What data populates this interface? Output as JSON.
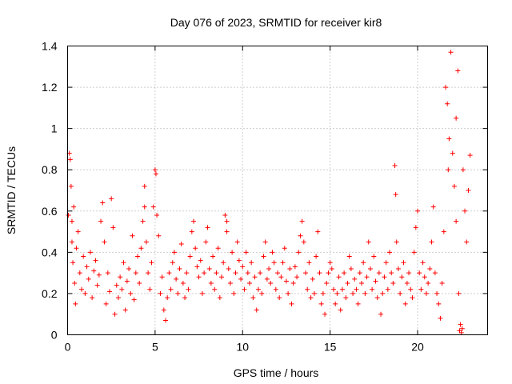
{
  "chart_data": {
    "type": "scatter",
    "title": "Day 076 of 2023, SRMTID for receiver kir8",
    "xlabel": "GPS time / hours",
    "ylabel": "SRMTID / TECUs",
    "xlim": [
      0,
      24
    ],
    "ylim": [
      0,
      1.4
    ],
    "x_ticks": [
      0,
      5,
      10,
      15,
      20
    ],
    "x_tick_labels": [
      "0",
      "5",
      "10",
      "15",
      "20"
    ],
    "y_ticks": [
      0,
      0.2,
      0.4,
      0.6,
      0.8,
      1,
      1.2,
      1.4
    ],
    "y_tick_labels": [
      "0",
      "0.2",
      "0.4",
      "0.6",
      "0.8",
      "1",
      "1.2",
      "1.4"
    ],
    "grid": true,
    "marker": "+",
    "color": "#ff0000",
    "series": [
      {
        "name": "SRMTID",
        "points": [
          [
            0.05,
            0.58
          ],
          [
            0.1,
            0.88
          ],
          [
            0.15,
            0.85
          ],
          [
            0.2,
            0.72
          ],
          [
            0.25,
            0.45
          ],
          [
            0.3,
            0.35
          ],
          [
            0.35,
            0.62
          ],
          [
            0.4,
            0.25
          ],
          [
            0.45,
            0.15
          ],
          [
            0.5,
            0.42
          ],
          [
            0.6,
            0.5
          ],
          [
            0.7,
            0.3
          ],
          [
            0.8,
            0.22
          ],
          [
            0.9,
            0.38
          ],
          [
            1.0,
            0.2
          ],
          [
            1.1,
            0.33
          ],
          [
            1.2,
            0.27
          ],
          [
            1.3,
            0.4
          ],
          [
            1.4,
            0.18
          ],
          [
            1.5,
            0.31
          ],
          [
            1.6,
            0.36
          ],
          [
            1.7,
            0.24
          ],
          [
            1.8,
            0.29
          ],
          [
            1.9,
            0.55
          ],
          [
            2.0,
            0.64
          ],
          [
            2.1,
            0.45
          ],
          [
            2.2,
            0.15
          ],
          [
            2.3,
            0.3
          ],
          [
            2.4,
            0.21
          ],
          [
            2.5,
            0.66
          ],
          [
            2.6,
            0.52
          ],
          [
            2.7,
            0.1
          ],
          [
            2.8,
            0.24
          ],
          [
            2.9,
            0.18
          ],
          [
            3.0,
            0.28
          ],
          [
            3.1,
            0.22
          ],
          [
            3.2,
            0.35
          ],
          [
            3.3,
            0.12
          ],
          [
            3.4,
            0.26
          ],
          [
            3.5,
            0.32
          ],
          [
            3.6,
            0.2
          ],
          [
            3.7,
            0.48
          ],
          [
            3.8,
            0.17
          ],
          [
            3.9,
            0.3
          ],
          [
            4.0,
            0.38
          ],
          [
            4.1,
            0.25
          ],
          [
            4.2,
            0.42
          ],
          [
            4.3,
            0.55
          ],
          [
            4.4,
            0.72
          ],
          [
            4.5,
            0.45
          ],
          [
            4.6,
            0.3
          ],
          [
            4.7,
            0.22
          ],
          [
            4.8,
            0.35
          ],
          [
            4.9,
            0.62
          ],
          [
            5.0,
            0.8
          ],
          [
            5.05,
            0.78
          ],
          [
            5.1,
            0.58
          ],
          [
            5.2,
            0.48
          ],
          [
            5.3,
            0.2
          ],
          [
            5.4,
            0.28
          ],
          [
            5.5,
            0.12
          ],
          [
            5.6,
            0.07
          ],
          [
            5.7,
            0.18
          ],
          [
            5.8,
            0.3
          ],
          [
            5.9,
            0.22
          ],
          [
            6.0,
            0.35
          ],
          [
            6.1,
            0.4
          ],
          [
            6.2,
            0.27
          ],
          [
            6.3,
            0.2
          ],
          [
            6.4,
            0.32
          ],
          [
            6.5,
            0.44
          ],
          [
            6.6,
            0.25
          ],
          [
            6.7,
            0.18
          ],
          [
            6.8,
            0.3
          ],
          [
            6.9,
            0.22
          ],
          [
            7.0,
            0.38
          ],
          [
            7.1,
            0.5
          ],
          [
            7.2,
            0.55
          ],
          [
            7.3,
            0.42
          ],
          [
            7.4,
            0.33
          ],
          [
            7.5,
            0.28
          ],
          [
            7.6,
            0.36
          ],
          [
            7.7,
            0.2
          ],
          [
            7.8,
            0.3
          ],
          [
            7.9,
            0.45
          ],
          [
            8.0,
            0.52
          ],
          [
            8.1,
            0.32
          ],
          [
            8.2,
            0.25
          ],
          [
            8.3,
            0.38
          ],
          [
            8.4,
            0.22
          ],
          [
            8.5,
            0.3
          ],
          [
            8.6,
            0.42
          ],
          [
            8.7,
            0.18
          ],
          [
            8.8,
            0.28
          ],
          [
            8.9,
            0.35
          ],
          [
            9.0,
            0.58
          ],
          [
            9.1,
            0.55
          ],
          [
            9.2,
            0.32
          ],
          [
            9.3,
            0.25
          ],
          [
            9.4,
            0.4
          ],
          [
            9.5,
            0.2
          ],
          [
            9.6,
            0.3
          ],
          [
            9.7,
            0.45
          ],
          [
            9.8,
            0.36
          ],
          [
            9.9,
            0.27
          ],
          [
            10.0,
            0.33
          ],
          [
            10.1,
            0.22
          ],
          [
            10.2,
            0.4
          ],
          [
            10.3,
            0.3
          ],
          [
            10.4,
            0.25
          ],
          [
            10.5,
            0.35
          ],
          [
            10.6,
            0.18
          ],
          [
            10.7,
            0.28
          ],
          [
            10.8,
            0.12
          ],
          [
            10.9,
            0.22
          ],
          [
            11.0,
            0.3
          ],
          [
            11.1,
            0.2
          ],
          [
            11.2,
            0.38
          ],
          [
            11.3,
            0.45
          ],
          [
            11.4,
            0.27
          ],
          [
            11.5,
            0.32
          ],
          [
            11.6,
            0.25
          ],
          [
            11.7,
            0.4
          ],
          [
            11.8,
            0.35
          ],
          [
            11.9,
            0.22
          ],
          [
            12.0,
            0.3
          ],
          [
            12.1,
            0.18
          ],
          [
            12.2,
            0.28
          ],
          [
            12.3,
            0.35
          ],
          [
            12.4,
            0.42
          ],
          [
            12.5,
            0.26
          ],
          [
            12.6,
            0.2
          ],
          [
            12.7,
            0.32
          ],
          [
            12.8,
            0.15
          ],
          [
            12.9,
            0.25
          ],
          [
            13.0,
            0.33
          ],
          [
            13.1,
            0.28
          ],
          [
            13.2,
            0.4
          ],
          [
            13.3,
            0.48
          ],
          [
            13.4,
            0.55
          ],
          [
            13.5,
            0.45
          ],
          [
            13.6,
            0.3
          ],
          [
            13.7,
            0.22
          ],
          [
            13.8,
            0.35
          ],
          [
            13.9,
            0.18
          ],
          [
            14.0,
            0.27
          ],
          [
            14.1,
            0.2
          ],
          [
            14.2,
            0.38
          ],
          [
            14.3,
            0.5
          ],
          [
            14.4,
            0.3
          ],
          [
            14.5,
            0.15
          ],
          [
            14.6,
            0.2
          ],
          [
            14.7,
            0.1
          ],
          [
            14.8,
            0.25
          ],
          [
            14.9,
            0.3
          ],
          [
            15.0,
            0.35
          ],
          [
            15.1,
            0.32
          ],
          [
            15.2,
            0.22
          ],
          [
            15.3,
            0.15
          ],
          [
            15.4,
            0.2
          ],
          [
            15.5,
            0.28
          ],
          [
            15.6,
            0.12
          ],
          [
            15.7,
            0.22
          ],
          [
            15.8,
            0.3
          ],
          [
            15.9,
            0.18
          ],
          [
            16.0,
            0.25
          ],
          [
            16.1,
            0.38
          ],
          [
            16.2,
            0.32
          ],
          [
            16.3,
            0.2
          ],
          [
            16.4,
            0.27
          ],
          [
            16.5,
            0.22
          ],
          [
            16.6,
            0.15
          ],
          [
            16.7,
            0.3
          ],
          [
            16.8,
            0.25
          ],
          [
            16.9,
            0.35
          ],
          [
            17.0,
            0.2
          ],
          [
            17.1,
            0.28
          ],
          [
            17.2,
            0.45
          ],
          [
            17.3,
            0.32
          ],
          [
            17.4,
            0.22
          ],
          [
            17.5,
            0.38
          ],
          [
            17.6,
            0.26
          ],
          [
            17.7,
            0.18
          ],
          [
            17.8,
            0.3
          ],
          [
            17.9,
            0.1
          ],
          [
            18.0,
            0.2
          ],
          [
            18.1,
            0.28
          ],
          [
            18.2,
            0.35
          ],
          [
            18.3,
            0.22
          ],
          [
            18.4,
            0.4
          ],
          [
            18.5,
            0.3
          ],
          [
            18.6,
            0.25
          ],
          [
            18.7,
            0.82
          ],
          [
            18.75,
            0.68
          ],
          [
            18.8,
            0.45
          ],
          [
            18.9,
            0.32
          ],
          [
            19.0,
            0.2
          ],
          [
            19.1,
            0.28
          ],
          [
            19.2,
            0.35
          ],
          [
            19.3,
            0.15
          ],
          [
            19.4,
            0.25
          ],
          [
            19.5,
            0.3
          ],
          [
            19.6,
            0.22
          ],
          [
            19.7,
            0.18
          ],
          [
            19.8,
            0.4
          ],
          [
            19.9,
            0.52
          ],
          [
            20.0,
            0.6
          ],
          [
            20.1,
            0.3
          ],
          [
            20.2,
            0.22
          ],
          [
            20.3,
            0.35
          ],
          [
            20.4,
            0.28
          ],
          [
            20.5,
            0.2
          ],
          [
            20.6,
            0.25
          ],
          [
            20.7,
            0.32
          ],
          [
            20.8,
            0.45
          ],
          [
            20.9,
            0.62
          ],
          [
            21.0,
            0.3
          ],
          [
            21.1,
            0.2
          ],
          [
            21.2,
            0.15
          ],
          [
            21.3,
            0.08
          ],
          [
            21.4,
            0.25
          ],
          [
            21.5,
            0.5
          ],
          [
            21.6,
            1.2
          ],
          [
            21.7,
            1.12
          ],
          [
            21.8,
            0.95
          ],
          [
            21.9,
            1.37
          ],
          [
            22.0,
            0.88
          ],
          [
            22.1,
            0.72
          ],
          [
            22.2,
            0.55
          ],
          [
            22.3,
            1.28
          ],
          [
            22.35,
            0.2
          ],
          [
            22.4,
            0.02
          ],
          [
            22.45,
            0.05
          ],
          [
            22.5,
            0.01
          ],
          [
            22.55,
            0.03
          ],
          [
            22.6,
            0.8
          ],
          [
            22.7,
            0.6
          ],
          [
            22.8,
            0.45
          ],
          [
            22.9,
            0.7
          ],
          [
            23.0,
            0.87
          ],
          [
            22.2,
            1.05
          ],
          [
            21.75,
            0.8
          ],
          [
            0.25,
            0.55
          ],
          [
            4.4,
            0.62
          ],
          [
            9.1,
            0.5
          ]
        ]
      }
    ]
  }
}
